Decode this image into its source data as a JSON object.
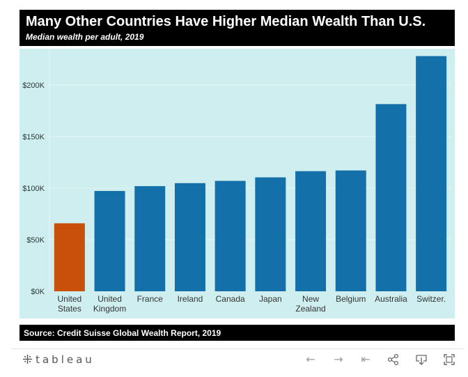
{
  "header": {
    "title": "Many Other Countries Have Higher Median Wealth Than U.S.",
    "subtitle": "Median wealth per adult, 2019"
  },
  "footer": {
    "source": "Source: Credit Suisse Global Wealth Report, 2019"
  },
  "toolbar": {
    "logo_text": "tableau",
    "icons": [
      "undo-icon",
      "redo-icon",
      "revert-icon",
      "share-icon",
      "download-icon",
      "fullscreen-icon"
    ]
  },
  "colors": {
    "background": "#cfeef0",
    "highlight_bar": "#c9500a",
    "bar": "#1470a8",
    "gridline": "#e8f6f7",
    "axis_text": "#333333"
  },
  "chart_data": {
    "type": "bar",
    "title": "Many Other Countries Have Higher Median Wealth Than U.S.",
    "subtitle": "Median wealth per adult, 2019",
    "categories": [
      [
        "United",
        "States"
      ],
      [
        "United",
        "Kingdom"
      ],
      [
        "France"
      ],
      [
        "Ireland"
      ],
      [
        "Canada"
      ],
      [
        "Japan"
      ],
      [
        "New",
        "Zealand"
      ],
      [
        "Belgium"
      ],
      [
        "Australia"
      ],
      [
        "Switzer."
      ]
    ],
    "values": [
      65900,
      97200,
      101900,
      104800,
      107000,
      110400,
      116400,
      117100,
      181400,
      227900
    ],
    "highlight_index": 0,
    "ylim": [
      0,
      235000
    ],
    "yticks": [
      0,
      50000,
      100000,
      150000,
      200000
    ],
    "ytick_labels": [
      "$0K",
      "$50K",
      "$100K",
      "$150K",
      "$200K"
    ],
    "grid": true,
    "legend": "none"
  }
}
